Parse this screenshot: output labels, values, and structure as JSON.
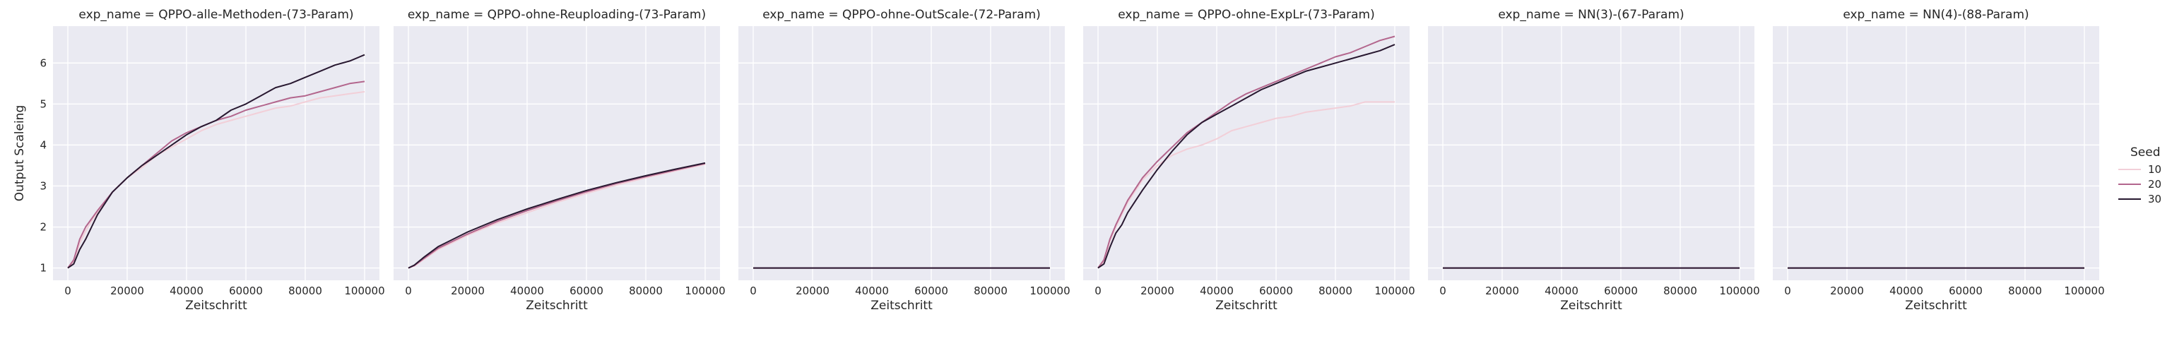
{
  "colors": {
    "panel_bg": "#eaeaf2",
    "grid": "#ffffff",
    "seed_10": "#f2cfd8",
    "seed_20": "#b3668d",
    "seed_30": "#281830"
  },
  "legend": {
    "title": "Seed",
    "placement": "right",
    "entries": [
      "10",
      "20",
      "30"
    ]
  },
  "chart_data": [
    {
      "type": "line",
      "title": "exp_name = QPPO-alle-Methoden-(73-Param)",
      "xlabel": "Zeitschritt",
      "ylabel": "Output Scaleing",
      "xlim": [
        -5000,
        105000
      ],
      "ylim": [
        0.7,
        6.9
      ],
      "xticks": [
        0,
        20000,
        40000,
        60000,
        80000,
        100000
      ],
      "yticks": [
        1,
        2,
        3,
        4,
        5,
        6
      ],
      "grid": true,
      "series": [
        {
          "name": "10",
          "x": [
            0,
            2000,
            4000,
            6000,
            8000,
            10000,
            15000,
            20000,
            25000,
            30000,
            35000,
            40000,
            45000,
            50000,
            55000,
            60000,
            65000,
            70000,
            75000,
            80000,
            85000,
            90000,
            95000,
            100000
          ],
          "y": [
            1.0,
            1.15,
            1.6,
            1.9,
            2.15,
            2.35,
            2.85,
            3.2,
            3.45,
            3.75,
            3.95,
            4.15,
            4.35,
            4.5,
            4.6,
            4.7,
            4.8,
            4.9,
            4.95,
            5.05,
            5.15,
            5.2,
            5.25,
            5.3
          ]
        },
        {
          "name": "20",
          "x": [
            0,
            2000,
            4000,
            6000,
            8000,
            10000,
            15000,
            20000,
            25000,
            30000,
            35000,
            40000,
            45000,
            50000,
            55000,
            60000,
            65000,
            70000,
            75000,
            80000,
            85000,
            90000,
            95000,
            100000
          ],
          "y": [
            1.0,
            1.2,
            1.7,
            2.0,
            2.2,
            2.4,
            2.85,
            3.2,
            3.5,
            3.8,
            4.1,
            4.3,
            4.45,
            4.6,
            4.7,
            4.85,
            4.95,
            5.05,
            5.15,
            5.2,
            5.3,
            5.4,
            5.5,
            5.55
          ]
        },
        {
          "name": "30",
          "x": [
            0,
            2000,
            4000,
            6000,
            8000,
            10000,
            15000,
            20000,
            25000,
            30000,
            35000,
            40000,
            45000,
            50000,
            55000,
            60000,
            65000,
            70000,
            75000,
            80000,
            85000,
            90000,
            95000,
            100000
          ],
          "y": [
            1.0,
            1.1,
            1.45,
            1.7,
            2.0,
            2.3,
            2.85,
            3.2,
            3.5,
            3.75,
            4.0,
            4.25,
            4.45,
            4.6,
            4.85,
            5.0,
            5.2,
            5.4,
            5.5,
            5.65,
            5.8,
            5.95,
            6.05,
            6.2
          ]
        }
      ]
    },
    {
      "type": "line",
      "title": "exp_name = QPPO-ohne-Reuploading-(73-Param)",
      "xlabel": "Zeitschritt",
      "ylabel": "",
      "xlim": [
        -5000,
        105000
      ],
      "ylim": [
        0.7,
        6.9
      ],
      "xticks": [
        0,
        20000,
        40000,
        60000,
        80000,
        100000
      ],
      "yticks": [
        1,
        2,
        3,
        4,
        5,
        6
      ],
      "grid": true,
      "series": [
        {
          "name": "10",
          "x": [
            0,
            2000,
            5000,
            10000,
            20000,
            30000,
            40000,
            50000,
            60000,
            70000,
            80000,
            90000,
            100000
          ],
          "y": [
            1.0,
            1.05,
            1.2,
            1.45,
            1.8,
            2.1,
            2.35,
            2.6,
            2.82,
            3.02,
            3.2,
            3.37,
            3.53
          ]
        },
        {
          "name": "20",
          "x": [
            0,
            2000,
            5000,
            10000,
            20000,
            30000,
            40000,
            50000,
            60000,
            70000,
            80000,
            90000,
            100000
          ],
          "y": [
            1.0,
            1.06,
            1.22,
            1.48,
            1.83,
            2.14,
            2.4,
            2.64,
            2.86,
            3.06,
            3.23,
            3.39,
            3.55
          ]
        },
        {
          "name": "30",
          "x": [
            0,
            2000,
            5000,
            10000,
            20000,
            30000,
            40000,
            50000,
            60000,
            70000,
            80000,
            90000,
            100000
          ],
          "y": [
            1.0,
            1.07,
            1.25,
            1.52,
            1.88,
            2.18,
            2.44,
            2.67,
            2.89,
            3.08,
            3.25,
            3.41,
            3.56
          ]
        }
      ]
    },
    {
      "type": "line",
      "title": "exp_name = QPPO-ohne-OutScale-(72-Param)",
      "xlabel": "Zeitschritt",
      "ylabel": "",
      "xlim": [
        -5000,
        105000
      ],
      "ylim": [
        0.7,
        6.9
      ],
      "xticks": [
        0,
        20000,
        40000,
        60000,
        80000,
        100000
      ],
      "yticks": [
        1,
        2,
        3,
        4,
        5,
        6
      ],
      "grid": true,
      "series": [
        {
          "name": "10",
          "x": [
            0,
            100000
          ],
          "y": [
            1.0,
            1.0
          ]
        },
        {
          "name": "20",
          "x": [
            0,
            100000
          ],
          "y": [
            1.0,
            1.0
          ]
        },
        {
          "name": "30",
          "x": [
            0,
            100000
          ],
          "y": [
            1.0,
            1.0
          ]
        }
      ]
    },
    {
      "type": "line",
      "title": "exp_name = QPPO-ohne-ExpLr-(73-Param)",
      "xlabel": "Zeitschritt",
      "ylabel": "",
      "xlim": [
        -5000,
        105000
      ],
      "ylim": [
        0.7,
        6.9
      ],
      "xticks": [
        0,
        20000,
        40000,
        60000,
        80000,
        100000
      ],
      "yticks": [
        1,
        2,
        3,
        4,
        5,
        6
      ],
      "grid": true,
      "series": [
        {
          "name": "10",
          "x": [
            0,
            2000,
            4000,
            6000,
            8000,
            10000,
            15000,
            20000,
            25000,
            30000,
            35000,
            40000,
            45000,
            50000,
            55000,
            60000,
            65000,
            70000,
            75000,
            80000,
            85000,
            90000,
            95000,
            100000
          ],
          "y": [
            1.0,
            1.15,
            1.65,
            2.0,
            2.3,
            2.6,
            3.15,
            3.5,
            3.75,
            3.9,
            4.0,
            4.15,
            4.35,
            4.45,
            4.55,
            4.65,
            4.7,
            4.8,
            4.85,
            4.9,
            4.95,
            5.05,
            5.05,
            5.05
          ]
        },
        {
          "name": "20",
          "x": [
            0,
            2000,
            4000,
            6000,
            8000,
            10000,
            15000,
            20000,
            25000,
            30000,
            35000,
            40000,
            45000,
            50000,
            55000,
            60000,
            65000,
            70000,
            75000,
            80000,
            85000,
            90000,
            95000,
            100000
          ],
          "y": [
            1.0,
            1.2,
            1.7,
            2.05,
            2.35,
            2.65,
            3.2,
            3.6,
            3.95,
            4.3,
            4.55,
            4.8,
            5.05,
            5.25,
            5.4,
            5.55,
            5.7,
            5.85,
            6.0,
            6.15,
            6.25,
            6.4,
            6.55,
            6.65
          ]
        },
        {
          "name": "30",
          "x": [
            0,
            2000,
            4000,
            6000,
            8000,
            10000,
            15000,
            20000,
            25000,
            30000,
            35000,
            40000,
            45000,
            50000,
            55000,
            60000,
            65000,
            70000,
            75000,
            80000,
            85000,
            90000,
            95000,
            100000
          ],
          "y": [
            1.0,
            1.1,
            1.5,
            1.85,
            2.05,
            2.35,
            2.9,
            3.4,
            3.85,
            4.25,
            4.55,
            4.75,
            4.95,
            5.15,
            5.35,
            5.5,
            5.65,
            5.8,
            5.9,
            6.0,
            6.1,
            6.2,
            6.3,
            6.45
          ]
        }
      ]
    },
    {
      "type": "line",
      "title": "exp_name = NN(3)-(67-Param)",
      "xlabel": "Zeitschritt",
      "ylabel": "",
      "xlim": [
        -5000,
        105000
      ],
      "ylim": [
        0.7,
        6.9
      ],
      "xticks": [
        0,
        20000,
        40000,
        60000,
        80000,
        100000
      ],
      "yticks": [
        1,
        2,
        3,
        4,
        5,
        6
      ],
      "grid": true,
      "series": [
        {
          "name": "10",
          "x": [
            0,
            100000
          ],
          "y": [
            1.0,
            1.0
          ]
        },
        {
          "name": "20",
          "x": [
            0,
            100000
          ],
          "y": [
            1.0,
            1.0
          ]
        },
        {
          "name": "30",
          "x": [
            0,
            100000
          ],
          "y": [
            1.0,
            1.0
          ]
        }
      ]
    },
    {
      "type": "line",
      "title": "exp_name = NN(4)-(88-Param)",
      "xlabel": "Zeitschritt",
      "ylabel": "",
      "xlim": [
        -5000,
        105000
      ],
      "ylim": [
        0.7,
        6.9
      ],
      "xticks": [
        0,
        20000,
        40000,
        60000,
        80000,
        100000
      ],
      "yticks": [
        1,
        2,
        3,
        4,
        5,
        6
      ],
      "grid": true,
      "series": [
        {
          "name": "10",
          "x": [
            0,
            100000
          ],
          "y": [
            1.0,
            1.0
          ]
        },
        {
          "name": "20",
          "x": [
            0,
            100000
          ],
          "y": [
            1.0,
            1.0
          ]
        },
        {
          "name": "30",
          "x": [
            0,
            100000
          ],
          "y": [
            1.0,
            1.0
          ]
        }
      ]
    }
  ]
}
